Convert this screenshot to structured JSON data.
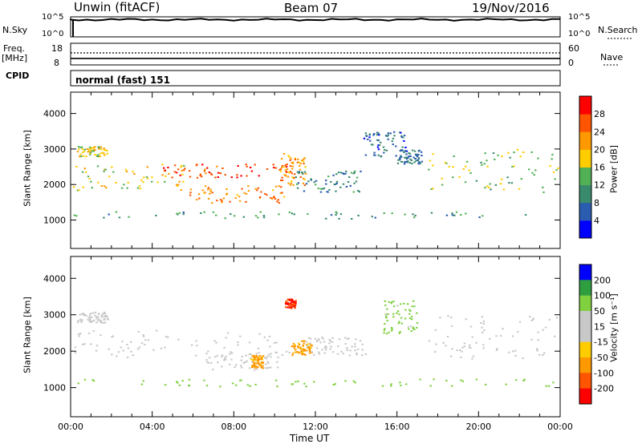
{
  "header": {
    "station": "Unwin (fitACF)",
    "beam": "Beam 07",
    "date": "19/Nov/2016"
  },
  "noise_panel": {
    "left_label": "N.Sky",
    "left_ticks": [
      "10^5",
      "10^0"
    ],
    "right_label": "N.Search",
    "right_ticks": [
      "10^5",
      "10^0"
    ]
  },
  "freq_panel": {
    "left_label": "Freq.",
    "left_unit": "[MHz]",
    "left_ticks": [
      "18",
      "8"
    ],
    "right_label": "Nave",
    "right_ticks": [
      "60",
      "0"
    ],
    "freq_mhz": 11,
    "nave": 60
  },
  "cpid": {
    "label": "CPID",
    "mode_text": "normal (fast) 151"
  },
  "colors": {
    "power_scale": [
      "#0000ff",
      "#2a5cb0",
      "#3a8a6e",
      "#52b055",
      "#ffcc00",
      "#ff9900",
      "#ff5500",
      "#ff0000"
    ],
    "velocity_scale": [
      "#ff0000",
      "#ff5500",
      "#ff9900",
      "#ffcc00",
      "#c8c8c8",
      "#c8c8c8",
      "#80d040",
      "#2e9e3e",
      "#0000ff"
    ]
  },
  "chart_data": [
    {
      "type": "heatmap",
      "panel": "power",
      "ylabel": "Slant Range [km]",
      "yticks": [
        1000,
        2000,
        3000,
        4000
      ],
      "ylim": [
        200,
        4600
      ],
      "xlim": [
        0,
        24
      ],
      "colorbar": {
        "label": "Power [dB]",
        "ticks": [
          "4",
          "8",
          "12",
          "16",
          "20",
          "24",
          "28"
        ],
        "range": [
          0,
          32
        ]
      },
      "regions": [
        {
          "t0": 0.1,
          "t1": 5.8,
          "r0": 1850,
          "r1": 2600,
          "v": 18
        },
        {
          "t0": 0.3,
          "t1": 1.8,
          "r0": 2800,
          "r1": 3100,
          "v": 18
        },
        {
          "t0": 4.5,
          "t1": 10.8,
          "r0": 2200,
          "r1": 2600,
          "v": 27
        },
        {
          "t0": 5.8,
          "t1": 10.5,
          "r0": 1500,
          "r1": 2000,
          "v": 23
        },
        {
          "t0": 10.2,
          "t1": 11.5,
          "r0": 2000,
          "r1": 2900,
          "v": 22
        },
        {
          "t0": 11.0,
          "t1": 14.2,
          "r0": 1800,
          "r1": 2400,
          "v": 9
        },
        {
          "t0": 14.3,
          "t1": 16.5,
          "r0": 2800,
          "r1": 3500,
          "v": 7
        },
        {
          "t0": 16.0,
          "t1": 17.2,
          "r0": 2600,
          "r1": 3000,
          "v": 8
        },
        {
          "t0": 17.5,
          "t1": 23.9,
          "r0": 1800,
          "r1": 3000,
          "v": 15
        },
        {
          "t0": 0.1,
          "t1": 23.9,
          "r0": 1050,
          "r1": 1250,
          "v": 11
        }
      ]
    },
    {
      "type": "heatmap",
      "panel": "velocity",
      "xlabel": "Time UT",
      "ylabel": "Slant Range [km]",
      "xticks": [
        "00:00",
        "04:00",
        "08:00",
        "12:00",
        "16:00",
        "20:00",
        "00:00"
      ],
      "yticks": [
        1000,
        2000,
        3000,
        4000
      ],
      "ylim": [
        200,
        4600
      ],
      "xlim": [
        0,
        24
      ],
      "colorbar": {
        "label": "Velocity [m s⁻¹]",
        "ticks": [
          "200",
          "100",
          "50",
          "15",
          "-15",
          "-50",
          "-100",
          "-200"
        ],
        "range": [
          -250,
          250
        ]
      },
      "regions": [
        {
          "t0": 0.1,
          "t1": 10.8,
          "r0": 1850,
          "r1": 2600,
          "v": 0
        },
        {
          "t0": 0.3,
          "t1": 1.8,
          "r0": 2800,
          "r1": 3100,
          "v": 0
        },
        {
          "t0": 6.5,
          "t1": 10.2,
          "r0": 1500,
          "r1": 2000,
          "v": 0
        },
        {
          "t0": 8.8,
          "t1": 9.4,
          "r0": 1550,
          "r1": 1900,
          "v": -60
        },
        {
          "t0": 10.8,
          "t1": 11.8,
          "r0": 1900,
          "r1": 2300,
          "v": -60
        },
        {
          "t0": 10.5,
          "t1": 11.0,
          "r0": 3200,
          "r1": 3450,
          "v": -200
        },
        {
          "t0": 11.5,
          "t1": 14.5,
          "r0": 1900,
          "r1": 2400,
          "v": 0
        },
        {
          "t0": 15.3,
          "t1": 17.0,
          "r0": 2500,
          "r1": 3400,
          "v": 25
        },
        {
          "t0": 17.5,
          "t1": 23.9,
          "r0": 1800,
          "r1": 3000,
          "v": 0
        },
        {
          "t0": 0.1,
          "t1": 23.9,
          "r0": 1050,
          "r1": 1250,
          "v": 30
        }
      ]
    }
  ]
}
